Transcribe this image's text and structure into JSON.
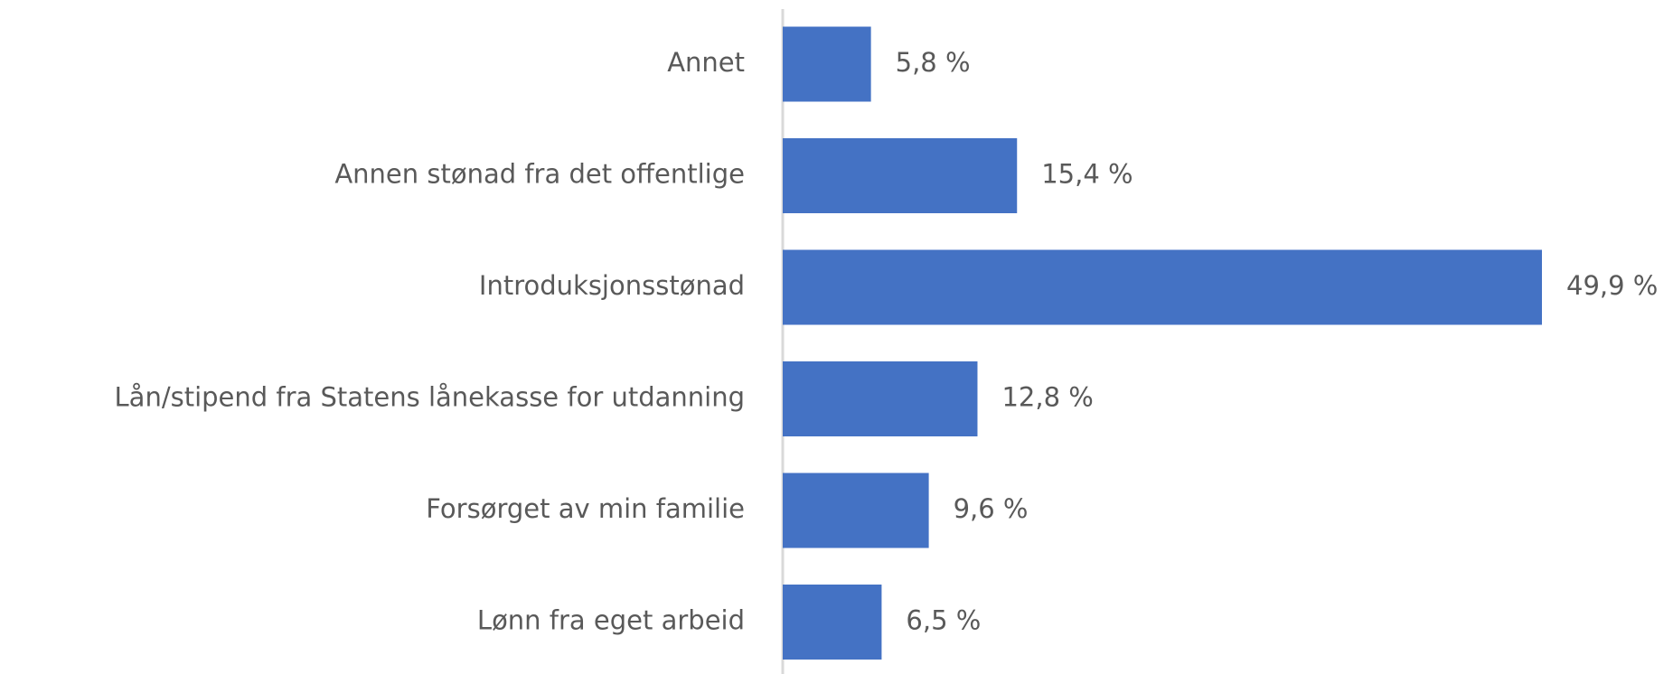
{
  "chart_data": {
    "type": "bar",
    "orientation": "horizontal",
    "categories": [
      "Annet",
      "Annen stønad fra det offentlige",
      "Introduksjonsstønad",
      "Lån/stipend fra Statens lånekasse for utdanning",
      "Forsørget av min familie",
      "Lønn fra eget arbeid"
    ],
    "values": [
      5.8,
      15.4,
      49.9,
      12.8,
      9.6,
      6.5
    ],
    "value_labels": [
      "5,8 %",
      "15,4 %",
      "49,9 %",
      "12,8 %",
      "9,6 %",
      "6,5 %"
    ],
    "color": "#4472c4"
  }
}
